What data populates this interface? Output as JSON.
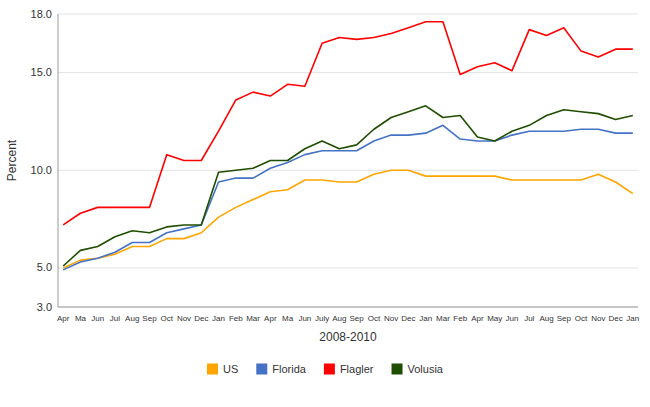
{
  "chart_data": {
    "type": "line",
    "xlabel": "2008-2010",
    "ylabel": "Percent",
    "categories": [
      "Apr",
      "Ma",
      "Jun",
      "Jul",
      "Aug",
      "Sep",
      "Oct",
      "Nov",
      "Dec",
      "Jan",
      "Feb",
      "Mar",
      "Apr",
      "Ma",
      "Jun",
      "July",
      "Aug",
      "Sep",
      "Oct",
      "Nov",
      "Dec",
      "Jan",
      "Mar",
      "Feb",
      "Apr",
      "May",
      "Jun",
      "Jul",
      "Aug",
      "Sep",
      "Oct",
      "Nov",
      "Dec",
      "Jan"
    ],
    "series": [
      {
        "name": "US",
        "color": "#FFA500",
        "values": [
          5.0,
          5.4,
          5.5,
          5.7,
          6.1,
          6.1,
          6.5,
          6.5,
          6.8,
          7.6,
          8.1,
          8.5,
          8.9,
          9.0,
          9.5,
          9.5,
          9.4,
          9.4,
          9.8,
          10.0,
          10.0,
          9.7,
          9.7,
          9.7,
          9.7,
          9.7,
          9.5,
          9.5,
          9.5,
          9.5,
          9.5,
          9.8,
          9.4,
          8.8
        ]
      },
      {
        "name": "Florida",
        "color": "#4472C4",
        "values": [
          4.9,
          5.3,
          5.5,
          5.8,
          6.3,
          6.3,
          6.8,
          7.0,
          7.2,
          9.4,
          9.6,
          9.6,
          10.1,
          10.4,
          10.8,
          11.0,
          11.0,
          11.0,
          11.5,
          11.8,
          11.8,
          11.9,
          12.3,
          11.6,
          11.5,
          11.5,
          11.8,
          12.0,
          12.0,
          12.0,
          12.1,
          12.1,
          11.9,
          11.9
        ]
      },
      {
        "name": "Flagler",
        "color": "#FF0000",
        "values": [
          7.2,
          7.8,
          8.1,
          8.1,
          8.1,
          8.1,
          10.8,
          10.5,
          10.5,
          12.0,
          13.6,
          14.0,
          13.8,
          14.4,
          14.3,
          16.5,
          16.8,
          16.7,
          16.8,
          17.0,
          17.3,
          17.6,
          17.6,
          14.9,
          15.3,
          15.5,
          15.1,
          17.2,
          16.9,
          17.3,
          16.1,
          15.8,
          16.2,
          16.2
        ]
      },
      {
        "name": "Volusia",
        "color": "#1F4E00",
        "values": [
          5.1,
          5.9,
          6.1,
          6.6,
          6.9,
          6.8,
          7.1,
          7.2,
          7.2,
          9.9,
          10.0,
          10.1,
          10.5,
          10.5,
          11.1,
          11.5,
          11.1,
          11.3,
          12.1,
          12.7,
          13.0,
          13.3,
          12.7,
          12.8,
          11.7,
          11.5,
          12.0,
          12.3,
          12.8,
          13.1,
          13.0,
          12.9,
          12.6,
          12.8
        ]
      }
    ],
    "ylim": [
      3.0,
      18.0
    ],
    "yticks": [
      {
        "value": 3.0,
        "label": "3.0"
      },
      {
        "value": 5.0,
        "label": "5.0"
      },
      {
        "value": 10.0,
        "label": "10.0"
      },
      {
        "value": 15.0,
        "label": "15.0"
      },
      {
        "value": 18.0,
        "label": "18.0"
      }
    ],
    "grid": true,
    "legend": "bottom"
  }
}
